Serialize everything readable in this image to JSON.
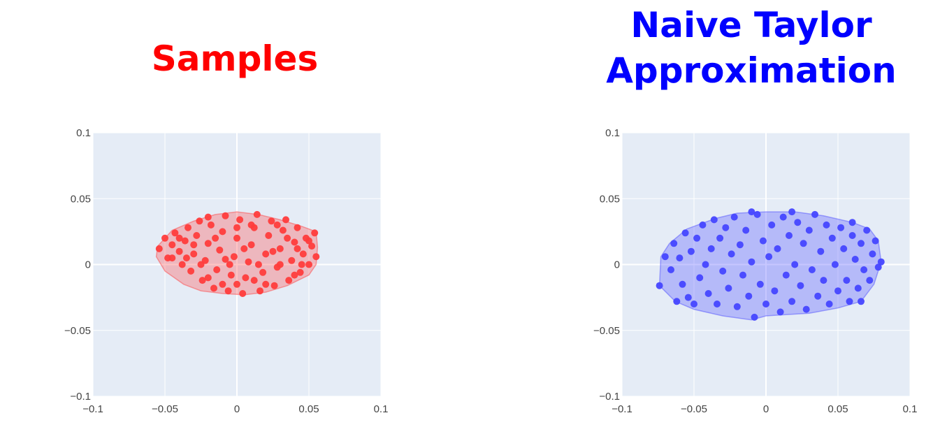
{
  "titles": {
    "left": "Samples",
    "right": "Naive Taylor Approximation"
  },
  "colors": {
    "left": "#ff3c3c",
    "right": "#4646ff",
    "left_title": "#ff0000",
    "right_title": "#0000ff",
    "plot_bg": "#e5ecf6",
    "grid": "#ffffff"
  },
  "chart_data": [
    {
      "type": "scatter",
      "title": "Samples",
      "xlim": [
        -0.1,
        0.1
      ],
      "ylim": [
        -0.1,
        0.1
      ],
      "xticks": [
        "−0.1",
        "−0.05",
        "0",
        "0.05",
        "0.1"
      ],
      "yticks": [
        "0.1",
        "0.05",
        "0",
        "−0.05",
        "−0.1"
      ],
      "grid": true,
      "hull": [
        [
          -0.055,
          0.014
        ],
        [
          -0.045,
          0.026
        ],
        [
          -0.03,
          0.033
        ],
        [
          -0.015,
          0.038
        ],
        [
          0,
          0.04
        ],
        [
          0.015,
          0.038
        ],
        [
          0.03,
          0.034
        ],
        [
          0.045,
          0.029
        ],
        [
          0.055,
          0.025
        ],
        [
          0.056,
          0.013
        ],
        [
          0.055,
          0
        ],
        [
          0.05,
          -0.008
        ],
        [
          0.035,
          -0.016
        ],
        [
          0.02,
          -0.021
        ],
        [
          0.005,
          -0.023
        ],
        [
          -0.01,
          -0.022
        ],
        [
          -0.025,
          -0.02
        ],
        [
          -0.037,
          -0.015
        ],
        [
          -0.05,
          -0.005
        ],
        [
          -0.056,
          0.006
        ]
      ],
      "points": [
        [
          -0.054,
          0.012
        ],
        [
          -0.05,
          0.02
        ],
        [
          -0.048,
          0.005
        ],
        [
          -0.045,
          0.015
        ],
        [
          -0.043,
          0.024
        ],
        [
          -0.04,
          0.01
        ],
        [
          -0.038,
          0.0
        ],
        [
          -0.036,
          0.018
        ],
        [
          -0.034,
          0.028
        ],
        [
          -0.032,
          -0.005
        ],
        [
          -0.03,
          0.008
        ],
        [
          -0.028,
          0.022
        ],
        [
          -0.026,
          0.033
        ],
        [
          -0.024,
          -0.012
        ],
        [
          -0.022,
          0.003
        ],
        [
          -0.02,
          0.016
        ],
        [
          -0.018,
          0.03
        ],
        [
          -0.016,
          -0.018
        ],
        [
          -0.014,
          -0.004
        ],
        [
          -0.012,
          0.011
        ],
        [
          -0.01,
          0.025
        ],
        [
          -0.008,
          0.037
        ],
        [
          -0.006,
          -0.02
        ],
        [
          -0.004,
          -0.008
        ],
        [
          -0.002,
          0.006
        ],
        [
          0.0,
          0.02
        ],
        [
          0.002,
          0.034
        ],
        [
          0.004,
          -0.022
        ],
        [
          0.006,
          -0.01
        ],
        [
          0.008,
          0.002
        ],
        [
          0.01,
          0.015
        ],
        [
          0.012,
          0.028
        ],
        [
          0.014,
          0.038
        ],
        [
          0.016,
          -0.02
        ],
        [
          0.018,
          -0.006
        ],
        [
          0.02,
          0.008
        ],
        [
          0.022,
          0.022
        ],
        [
          0.024,
          0.033
        ],
        [
          0.026,
          -0.016
        ],
        [
          0.028,
          -0.002
        ],
        [
          0.03,
          0.012
        ],
        [
          0.032,
          0.026
        ],
        [
          0.034,
          0.034
        ],
        [
          0.036,
          -0.012
        ],
        [
          0.038,
          0.003
        ],
        [
          0.04,
          0.017
        ],
        [
          0.042,
          0.028
        ],
        [
          0.044,
          -0.006
        ],
        [
          0.046,
          0.008
        ],
        [
          0.048,
          0.02
        ],
        [
          0.05,
          0.0
        ],
        [
          0.052,
          0.014
        ],
        [
          0.054,
          0.024
        ],
        [
          0.055,
          0.006
        ],
        [
          -0.025,
          0.0
        ],
        [
          -0.02,
          -0.01
        ],
        [
          -0.015,
          0.02
        ],
        [
          -0.005,
          0.0
        ],
        [
          0.005,
          0.012
        ],
        [
          0.015,
          0.0
        ],
        [
          0.025,
          0.01
        ],
        [
          0.035,
          0.02
        ],
        [
          0.045,
          0.0
        ],
        [
          -0.03,
          0.015
        ],
        [
          0.0,
          -0.015
        ],
        [
          0.01,
          0.03
        ],
        [
          0.02,
          -0.015
        ],
        [
          0.03,
          0.0
        ],
        [
          0.04,
          -0.008
        ],
        [
          -0.01,
          -0.015
        ],
        [
          -0.035,
          0.005
        ],
        [
          -0.045,
          0.005
        ],
        [
          0.05,
          0.018
        ],
        [
          0.0,
          0.028
        ],
        [
          -0.02,
          0.036
        ],
        [
          0.028,
          0.03
        ],
        [
          0.042,
          0.012
        ],
        [
          -0.008,
          0.004
        ],
        [
          0.012,
          -0.012
        ],
        [
          -0.04,
          0.02
        ]
      ]
    },
    {
      "type": "scatter",
      "title": "Naive Taylor Approximation",
      "xlim": [
        -0.1,
        0.1
      ],
      "ylim": [
        -0.1,
        0.1
      ],
      "xticks": [
        "−0.1",
        "−0.05",
        "0",
        "0.05",
        "0.1"
      ],
      "yticks": [
        "0.1",
        "0.05",
        "0",
        "−0.05",
        "−0.1"
      ],
      "grid": true,
      "hull": [
        [
          -0.074,
          -0.016
        ],
        [
          -0.073,
          0.006
        ],
        [
          -0.067,
          0.016
        ],
        [
          -0.055,
          0.027
        ],
        [
          -0.035,
          0.035
        ],
        [
          -0.02,
          0.039
        ],
        [
          0.0,
          0.04
        ],
        [
          0.02,
          0.04
        ],
        [
          0.04,
          0.037
        ],
        [
          0.06,
          0.032
        ],
        [
          0.072,
          0.027
        ],
        [
          0.078,
          0.018
        ],
        [
          0.08,
          0.002
        ],
        [
          0.075,
          -0.015
        ],
        [
          0.066,
          -0.028
        ],
        [
          0.05,
          -0.033
        ],
        [
          0.03,
          -0.037
        ],
        [
          0.0,
          -0.039
        ],
        [
          -0.01,
          -0.042
        ],
        [
          -0.03,
          -0.039
        ],
        [
          -0.05,
          -0.034
        ],
        [
          -0.063,
          -0.028
        ]
      ],
      "points": [
        [
          -0.074,
          -0.016
        ],
        [
          -0.07,
          0.006
        ],
        [
          -0.066,
          -0.004
        ],
        [
          -0.064,
          0.016
        ],
        [
          -0.06,
          0.005
        ],
        [
          -0.058,
          -0.015
        ],
        [
          -0.056,
          0.024
        ],
        [
          -0.054,
          -0.025
        ],
        [
          -0.052,
          0.01
        ],
        [
          -0.05,
          -0.03
        ],
        [
          -0.048,
          0.02
        ],
        [
          -0.046,
          -0.01
        ],
        [
          -0.044,
          0.03
        ],
        [
          -0.042,
          0.0
        ],
        [
          -0.04,
          -0.022
        ],
        [
          -0.038,
          0.012
        ],
        [
          -0.036,
          0.034
        ],
        [
          -0.034,
          -0.03
        ],
        [
          -0.032,
          0.02
        ],
        [
          -0.03,
          -0.005
        ],
        [
          -0.028,
          0.028
        ],
        [
          -0.026,
          -0.018
        ],
        [
          -0.024,
          0.008
        ],
        [
          -0.022,
          0.036
        ],
        [
          -0.02,
          -0.032
        ],
        [
          -0.018,
          0.015
        ],
        [
          -0.016,
          -0.008
        ],
        [
          -0.014,
          0.026
        ],
        [
          -0.012,
          -0.024
        ],
        [
          -0.01,
          0.002
        ],
        [
          -0.008,
          -0.04
        ],
        [
          -0.006,
          0.038
        ],
        [
          -0.004,
          -0.015
        ],
        [
          -0.002,
          0.018
        ],
        [
          0.0,
          -0.03
        ],
        [
          0.002,
          0.006
        ],
        [
          0.004,
          0.03
        ],
        [
          0.006,
          -0.02
        ],
        [
          0.008,
          0.012
        ],
        [
          0.01,
          -0.036
        ],
        [
          0.012,
          0.036
        ],
        [
          0.014,
          -0.008
        ],
        [
          0.016,
          0.022
        ],
        [
          0.018,
          -0.028
        ],
        [
          0.02,
          0.0
        ],
        [
          0.022,
          0.032
        ],
        [
          0.024,
          -0.016
        ],
        [
          0.026,
          0.016
        ],
        [
          0.028,
          -0.034
        ],
        [
          0.03,
          0.026
        ],
        [
          0.032,
          -0.004
        ],
        [
          0.034,
          0.038
        ],
        [
          0.036,
          -0.024
        ],
        [
          0.038,
          0.01
        ],
        [
          0.04,
          -0.012
        ],
        [
          0.042,
          0.03
        ],
        [
          0.044,
          -0.03
        ],
        [
          0.046,
          0.02
        ],
        [
          0.048,
          0.0
        ],
        [
          0.05,
          -0.02
        ],
        [
          0.052,
          0.028
        ],
        [
          0.054,
          0.012
        ],
        [
          0.056,
          -0.012
        ],
        [
          0.058,
          -0.028
        ],
        [
          0.06,
          0.022
        ],
        [
          0.062,
          0.004
        ],
        [
          0.064,
          -0.018
        ],
        [
          0.066,
          0.016
        ],
        [
          0.068,
          -0.004
        ],
        [
          0.07,
          0.026
        ],
        [
          0.072,
          -0.012
        ],
        [
          0.074,
          0.008
        ],
        [
          0.076,
          0.018
        ],
        [
          0.078,
          -0.002
        ],
        [
          0.08,
          0.002
        ],
        [
          -0.01,
          0.04
        ],
        [
          0.018,
          0.04
        ],
        [
          0.06,
          0.032
        ],
        [
          0.066,
          -0.028
        ],
        [
          -0.062,
          -0.028
        ]
      ]
    }
  ]
}
